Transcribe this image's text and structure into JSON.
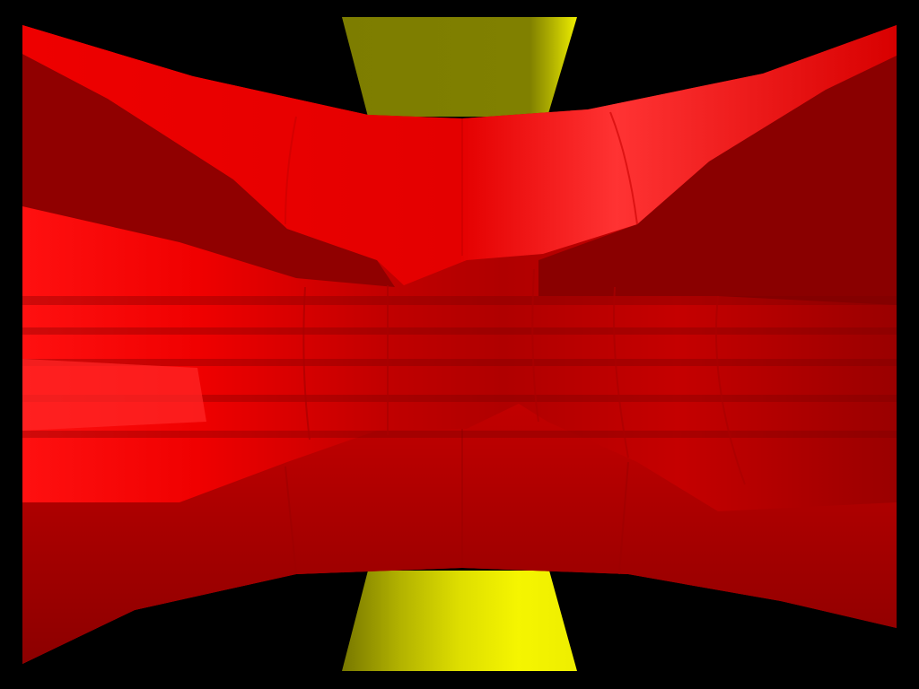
{
  "scene": {
    "background_color": "#000000",
    "objects": [
      {
        "name": "yellow-cylinder",
        "shape": "hyperboloid-column",
        "base_color": "#e8e800",
        "shadow_color": "#7d7d00"
      },
      {
        "name": "red-surface",
        "shape": "saddle-sheet",
        "base_color": "#e00000",
        "highlight_color": "#ff3a3a",
        "shadow_color": "#8a0000"
      }
    ],
    "shading": "flat-faceted"
  }
}
